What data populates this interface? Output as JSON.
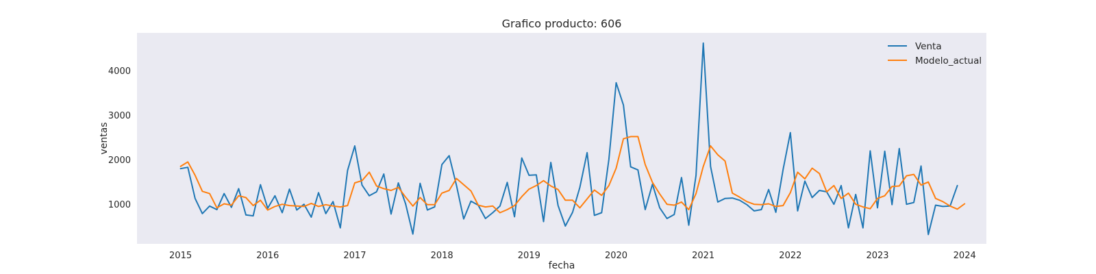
{
  "chart_data": {
    "type": "line",
    "title": "Grafico producto: 606",
    "xlabel": "fecha",
    "ylabel": "ventas",
    "x_start": "2015-01",
    "x_frequency": "monthly",
    "x_ticks": [
      "2015",
      "2016",
      "2017",
      "2018",
      "2019",
      "2020",
      "2021",
      "2022",
      "2023",
      "2024"
    ],
    "y_ticks": [
      1000,
      2000,
      3000,
      4000
    ],
    "xlim": [
      "2014-07",
      "2024-04"
    ],
    "ylim": [
      110,
      4850
    ],
    "grid": false,
    "legend": "top-right",
    "series": [
      {
        "name": "Venta",
        "color": "#1f77b4",
        "values": [
          1800,
          1830,
          1130,
          790,
          960,
          880,
          1240,
          930,
          1350,
          760,
          740,
          1440,
          910,
          1190,
          810,
          1340,
          870,
          1000,
          710,
          1260,
          790,
          1060,
          470,
          1760,
          2310,
          1430,
          1190,
          1280,
          1680,
          780,
          1480,
          1010,
          330,
          1470,
          870,
          940,
          1890,
          2090,
          1430,
          670,
          1070,
          980,
          680,
          810,
          960,
          1490,
          720,
          2040,
          1650,
          1660,
          610,
          1940,
          970,
          510,
          820,
          1380,
          2160,
          750,
          810,
          2010,
          3730,
          3230,
          1840,
          1770,
          880,
          1450,
          920,
          680,
          770,
          1600,
          530,
          1650,
          4620,
          1850,
          1050,
          1130,
          1140,
          1090,
          990,
          850,
          880,
          1330,
          820,
          1780,
          2610,
          850,
          1520,
          1150,
          1310,
          1280,
          1000,
          1420,
          470,
          1220,
          470,
          2200,
          920,
          2190,
          990,
          2250,
          1000,
          1040,
          1860,
          320,
          980,
          950,
          960,
          1420
        ]
      },
      {
        "name": "Modelo_actual",
        "color": "#ff7f0e",
        "values": [
          1850,
          1950,
          1650,
          1290,
          1240,
          920,
          1010,
          980,
          1190,
          1150,
          970,
          1090,
          870,
          950,
          1000,
          970,
          960,
          950,
          1020,
          950,
          990,
          960,
          940,
          970,
          1480,
          1530,
          1720,
          1410,
          1350,
          1310,
          1380,
          1160,
          960,
          1150,
          990,
          990,
          1250,
          1310,
          1580,
          1440,
          1300,
          980,
          940,
          960,
          810,
          880,
          970,
          1170,
          1340,
          1420,
          1530,
          1410,
          1330,
          1090,
          1090,
          920,
          1120,
          1320,
          1200,
          1420,
          1810,
          2470,
          2520,
          2520,
          1890,
          1490,
          1230,
          1000,
          980,
          1050,
          880,
          1240,
          1850,
          2310,
          2110,
          1970,
          1250,
          1160,
          1060,
          1000,
          990,
          1010,
          950,
          970,
          1260,
          1720,
          1570,
          1810,
          1690,
          1280,
          1420,
          1130,
          1250,
          1000,
          940,
          900,
          1130,
          1190,
          1400,
          1410,
          1640,
          1670,
          1430,
          1500,
          1130,
          1060,
          960,
          890,
          1010
        ]
      }
    ]
  }
}
